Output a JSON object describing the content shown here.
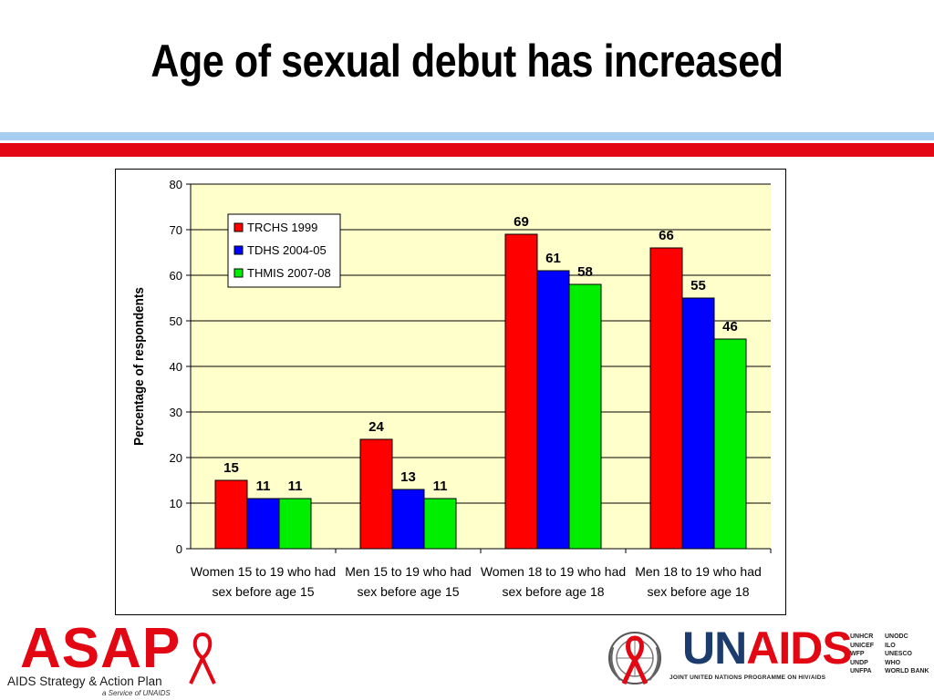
{
  "slide": {
    "title": "Age of sexual debut has increased"
  },
  "chart_data": {
    "type": "bar",
    "title": "",
    "xlabel": "",
    "ylabel": "Percentage of respondents",
    "ylim": [
      0,
      80
    ],
    "yticks": [
      0,
      10,
      20,
      30,
      40,
      50,
      60,
      70,
      80
    ],
    "grid": true,
    "legend_position": "top-left",
    "categories": [
      [
        "Women 15 to 19 who had",
        "sex before age 15"
      ],
      [
        "Men 15 to 19 who had",
        "sex before age 15"
      ],
      [
        "Women 18 to 19 who had",
        "sex before age 18"
      ],
      [
        "Men 18 to 19 who had",
        "sex before age 18"
      ]
    ],
    "series": [
      {
        "name": "TRCHS 1999",
        "color": "#ff0000",
        "values": [
          15,
          24,
          69,
          66
        ]
      },
      {
        "name": "TDHS 2004-05",
        "color": "#0000ff",
        "values": [
          11,
          13,
          61,
          55
        ]
      },
      {
        "name": "THMIS 2007-08",
        "color": "#00ee00",
        "values": [
          11,
          11,
          58,
          46
        ]
      }
    ],
    "plot_background": "#ffffcc"
  },
  "footer": {
    "asap_logo": "ASAP",
    "asap_line1": "AIDS Strategy & Action Plan",
    "asap_line2": "a Service of UNAIDS",
    "unaids_un": "UN",
    "unaids_aids": "AIDS",
    "unaids_tagline": "JOINT UNITED NATIONS PROGRAMME ON HIV/AIDS",
    "cosponsors_col1": [
      "UNHCR",
      "UNICEF",
      "WFP",
      "UNDP",
      "UNFPA"
    ],
    "cosponsors_col2": [
      "UNODC",
      "ILO",
      "UNESCO",
      "WHO",
      "WORLD BANK"
    ]
  },
  "colors": {
    "stripe_blue": "#a7cdf0",
    "stripe_red": "#e30613",
    "brand_red": "#e30613",
    "brand_blue": "#1d3c6e"
  }
}
